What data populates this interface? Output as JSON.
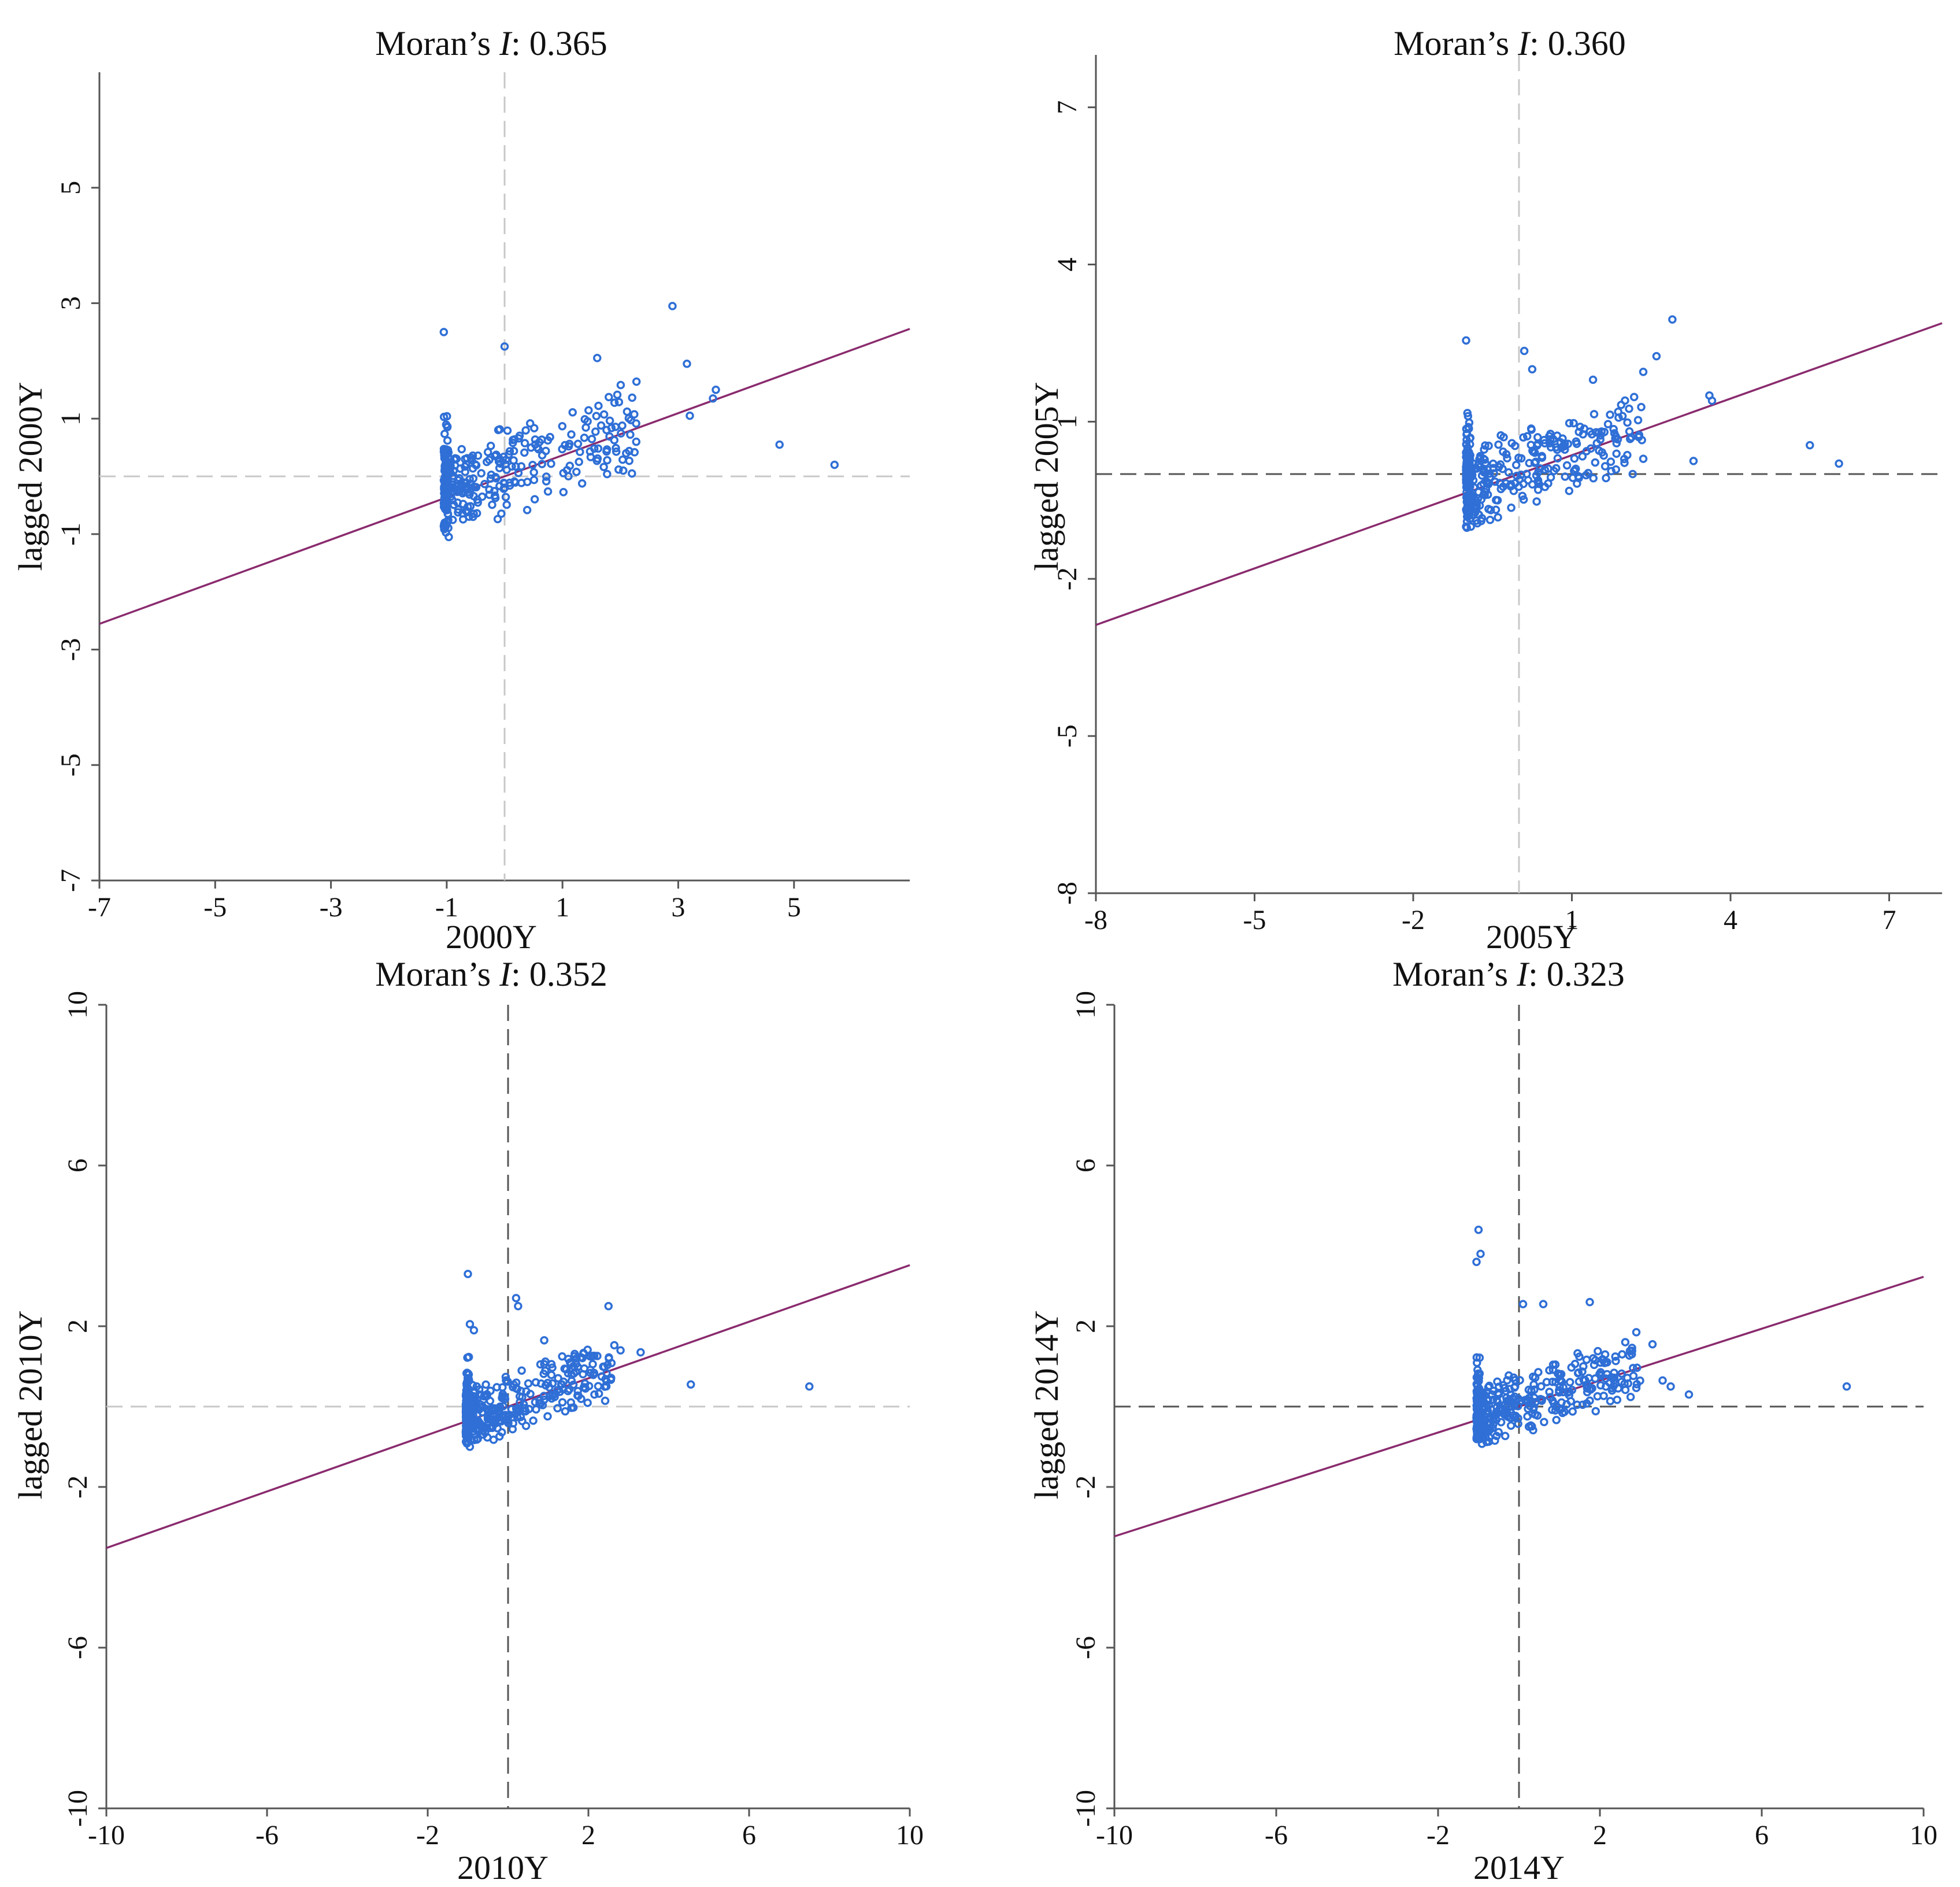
{
  "chart_data": [
    {
      "id": "p2000",
      "type": "scatter",
      "title_prefix": "Moran’s ",
      "title_italic": "I",
      "title_suffix": ": 0.365",
      "xlabel": "2000Y",
      "ylabel": "lagged 2000Y",
      "xlim": [
        -7,
        7
      ],
      "ylim": [
        -7,
        7
      ],
      "xticks": [
        "-7",
        "-5",
        "-3",
        "-1",
        "1",
        "3",
        "5"
      ],
      "yticks": [
        "-7",
        "-5",
        "-3",
        "-1",
        "1",
        "3",
        "5"
      ],
      "slope": 0.365,
      "ref_color": "#c8c8c8",
      "point_color": "#2f6fd6",
      "line_color": "#8a2b6e",
      "outliers": [
        [
          2.9,
          2.95
        ],
        [
          3.15,
          1.95
        ],
        [
          3.65,
          1.5
        ],
        [
          3.6,
          1.35
        ],
        [
          3.2,
          1.05
        ],
        [
          4.75,
          0.55
        ],
        [
          5.7,
          0.2
        ],
        [
          2.2,
          0.05
        ],
        [
          2.05,
          0.1
        ],
        [
          -1.05,
          2.5
        ],
        [
          0.0,
          2.25
        ],
        [
          1.6,
          2.05
        ],
        [
          2.1,
          0.4
        ]
      ],
      "cloud": {
        "xmin": -1.05,
        "xmax": 2.3,
        "ymin": -1.05,
        "ymax": 2.2,
        "n": 330,
        "seed": 11,
        "spread": 0.6
      }
    },
    {
      "id": "p2005",
      "type": "scatter",
      "title_prefix": "Moran’s ",
      "title_italic": "I",
      "title_suffix": ": 0.360",
      "xlabel": "2005Y",
      "ylabel": "lagged 2005Y",
      "xlim": [
        -8,
        8
      ],
      "ylim": [
        -8,
        8
      ],
      "xticks": [
        "-8",
        "-5",
        "-2",
        "1",
        "4",
        "7"
      ],
      "yticks": [
        "-8",
        "-5",
        "-2",
        "1",
        "4",
        "7"
      ],
      "slope": 0.36,
      "ref_color_h": "#555555",
      "ref_color": "#c8c8c8",
      "point_color": "#2f6fd6",
      "line_color": "#8a2b6e",
      "outliers": [
        [
          2.9,
          2.95
        ],
        [
          2.6,
          2.25
        ],
        [
          2.35,
          1.95
        ],
        [
          3.6,
          1.5
        ],
        [
          3.65,
          1.4
        ],
        [
          5.5,
          0.55
        ],
        [
          6.05,
          0.2
        ],
        [
          3.3,
          0.25
        ],
        [
          2.15,
          0.0
        ],
        [
          -1.0,
          2.55
        ],
        [
          0.1,
          2.35
        ],
        [
          0.25,
          2.0
        ],
        [
          1.4,
          1.8
        ]
      ],
      "cloud": {
        "xmin": -1.0,
        "xmax": 2.4,
        "ymin": -1.05,
        "ymax": 1.9,
        "n": 360,
        "seed": 23,
        "spread": 0.6
      }
    },
    {
      "id": "p2010",
      "type": "scatter",
      "title_prefix": "Moran’s ",
      "title_italic": "I",
      "title_suffix": ": 0.352",
      "xlabel": "2010Y",
      "ylabel": "lagged 2010Y",
      "xlim": [
        -10,
        10
      ],
      "ylim": [
        -10,
        10
      ],
      "xticks": [
        "-10",
        "-6",
        "-2",
        "2",
        "6",
        "10"
      ],
      "yticks": [
        "-10",
        "-6",
        "-2",
        "2",
        "6",
        "10"
      ],
      "slope": 0.352,
      "ref_color_h": "#c8c8c8",
      "ref_color": "#555555",
      "point_color": "#2f6fd6",
      "line_color": "#8a2b6e",
      "outliers": [
        [
          -1.0,
          3.3
        ],
        [
          0.2,
          2.7
        ],
        [
          0.25,
          2.5
        ],
        [
          2.5,
          2.5
        ],
        [
          2.8,
          1.4
        ],
        [
          3.3,
          1.35
        ],
        [
          4.55,
          0.55
        ],
        [
          7.5,
          0.5
        ],
        [
          2.15,
          0.3
        ],
        [
          -0.95,
          2.05
        ],
        [
          -0.85,
          1.9
        ],
        [
          0.9,
          1.65
        ]
      ],
      "cloud": {
        "xmin": -1.05,
        "xmax": 2.7,
        "ymin": -1.0,
        "ymax": 1.9,
        "n": 380,
        "seed": 37,
        "spread": 0.6
      }
    },
    {
      "id": "p2014",
      "type": "scatter",
      "title_prefix": "Moran’s ",
      "title_italic": "I",
      "title_suffix": ": 0.323",
      "xlabel": "2014Y",
      "ylabel": "lagged 2014Y",
      "xlim": [
        -10,
        10
      ],
      "ylim": [
        -10,
        10
      ],
      "xticks": [
        "-10",
        "-6",
        "-2",
        "2",
        "6",
        "10"
      ],
      "yticks": [
        "-10",
        "-6",
        "-2",
        "2",
        "6",
        "10"
      ],
      "slope": 0.323,
      "ref_color_h": "#555555",
      "ref_color": "#555555",
      "point_color": "#2f6fd6",
      "line_color": "#8a2b6e",
      "outliers": [
        [
          -1.0,
          4.4
        ],
        [
          -0.95,
          3.8
        ],
        [
          -1.05,
          3.6
        ],
        [
          0.1,
          2.55
        ],
        [
          0.6,
          2.55
        ],
        [
          1.75,
          2.6
        ],
        [
          2.9,
          1.85
        ],
        [
          3.3,
          1.55
        ],
        [
          3.55,
          0.65
        ],
        [
          3.75,
          0.5
        ],
        [
          4.2,
          0.3
        ],
        [
          8.1,
          0.5
        ],
        [
          2.55,
          1.3
        ],
        [
          2.3,
          0.4
        ]
      ],
      "cloud": {
        "xmin": -1.05,
        "xmax": 3.0,
        "ymin": -1.0,
        "ymax": 2.0,
        "n": 380,
        "seed": 53,
        "spread": 0.6
      }
    }
  ]
}
